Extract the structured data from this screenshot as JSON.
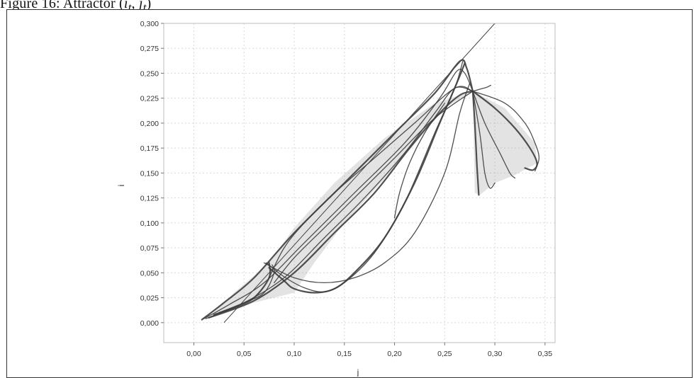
{
  "figure": {
    "caption_prefix": "Figure 16: Attractor (",
    "caption_i": "i",
    "caption_sub1": "t",
    "caption_sep": ", ",
    "caption_j": "j",
    "caption_sub2": "t",
    "caption_suffix": ")"
  },
  "chart_data": {
    "type": "scatter",
    "title": "",
    "xlabel": "j",
    "ylabel": "i",
    "xlim": [
      -0.03,
      0.36
    ],
    "ylim": [
      -0.02,
      0.3
    ],
    "x_ticks": [
      "0,00",
      "0,05",
      "0,10",
      "0,15",
      "0,20",
      "0,25",
      "0,30",
      "0,35"
    ],
    "x_tick_values": [
      0.0,
      0.05,
      0.1,
      0.15,
      0.2,
      0.25,
      0.3,
      0.35
    ],
    "y_ticks": [
      "0,000",
      "0,025",
      "0,050",
      "0,075",
      "0,100",
      "0,125",
      "0,150",
      "0,175",
      "0,200",
      "0,225",
      "0,250",
      "0,275",
      "0,300"
    ],
    "y_tick_values": [
      0.0,
      0.025,
      0.05,
      0.075,
      0.1,
      0.125,
      0.15,
      0.175,
      0.2,
      0.225,
      0.25,
      0.275,
      0.3
    ],
    "grid": true,
    "reference_line": {
      "name": "",
      "points": [
        [
          0.03,
          0.0
        ],
        [
          0.3,
          0.3
        ]
      ]
    },
    "attractor_curves": [
      [
        [
          0.008,
          0.003
        ],
        [
          0.03,
          0.02
        ],
        [
          0.06,
          0.045
        ],
        [
          0.1,
          0.09
        ],
        [
          0.15,
          0.14
        ],
        [
          0.2,
          0.19
        ],
        [
          0.24,
          0.23
        ],
        [
          0.265,
          0.262
        ],
        [
          0.272,
          0.255
        ],
        [
          0.278,
          0.232
        ]
      ],
      [
        [
          0.01,
          0.004
        ],
        [
          0.035,
          0.018
        ],
        [
          0.07,
          0.04
        ],
        [
          0.11,
          0.08
        ],
        [
          0.16,
          0.13
        ],
        [
          0.21,
          0.18
        ],
        [
          0.245,
          0.225
        ],
        [
          0.262,
          0.252
        ],
        [
          0.27,
          0.25
        ],
        [
          0.278,
          0.232
        ]
      ],
      [
        [
          0.012,
          0.004
        ],
        [
          0.05,
          0.02
        ],
        [
          0.09,
          0.045
        ],
        [
          0.13,
          0.085
        ],
        [
          0.17,
          0.125
        ],
        [
          0.21,
          0.17
        ],
        [
          0.24,
          0.21
        ],
        [
          0.26,
          0.235
        ],
        [
          0.278,
          0.232
        ]
      ],
      [
        [
          0.015,
          0.005
        ],
        [
          0.06,
          0.022
        ],
        [
          0.1,
          0.05
        ],
        [
          0.14,
          0.09
        ],
        [
          0.18,
          0.13
        ],
        [
          0.215,
          0.175
        ],
        [
          0.245,
          0.21
        ],
        [
          0.265,
          0.228
        ],
        [
          0.278,
          0.232
        ]
      ],
      [
        [
          0.075,
          0.045
        ],
        [
          0.09,
          0.075
        ],
        [
          0.11,
          0.1
        ],
        [
          0.14,
          0.13
        ],
        [
          0.18,
          0.165
        ],
        [
          0.22,
          0.2
        ],
        [
          0.26,
          0.235
        ],
        [
          0.278,
          0.232
        ]
      ],
      [
        [
          0.08,
          0.04
        ],
        [
          0.1,
          0.065
        ],
        [
          0.13,
          0.095
        ],
        [
          0.16,
          0.125
        ],
        [
          0.2,
          0.165
        ],
        [
          0.24,
          0.205
        ],
        [
          0.278,
          0.232
        ]
      ],
      [
        [
          0.075,
          0.055
        ],
        [
          0.09,
          0.042
        ],
        [
          0.1,
          0.034
        ],
        [
          0.12,
          0.03
        ],
        [
          0.14,
          0.034
        ],
        [
          0.16,
          0.05
        ],
        [
          0.19,
          0.085
        ],
        [
          0.22,
          0.14
        ],
        [
          0.245,
          0.2
        ],
        [
          0.262,
          0.24
        ],
        [
          0.27,
          0.26
        ]
      ],
      [
        [
          0.072,
          0.06
        ],
        [
          0.09,
          0.046
        ],
        [
          0.11,
          0.035
        ],
        [
          0.13,
          0.031
        ],
        [
          0.15,
          0.04
        ],
        [
          0.18,
          0.07
        ],
        [
          0.21,
          0.12
        ],
        [
          0.24,
          0.19
        ],
        [
          0.26,
          0.235
        ],
        [
          0.268,
          0.262
        ]
      ],
      [
        [
          0.07,
          0.06
        ],
        [
          0.1,
          0.045
        ],
        [
          0.13,
          0.04
        ],
        [
          0.16,
          0.045
        ],
        [
          0.19,
          0.06
        ],
        [
          0.22,
          0.09
        ],
        [
          0.25,
          0.15
        ],
        [
          0.265,
          0.21
        ],
        [
          0.275,
          0.24
        ]
      ],
      [
        [
          0.02,
          0.008
        ],
        [
          0.04,
          0.015
        ],
        [
          0.06,
          0.025
        ],
        [
          0.075,
          0.045
        ],
        [
          0.075,
          0.06
        ]
      ],
      [
        [
          0.025,
          0.01
        ],
        [
          0.05,
          0.02
        ],
        [
          0.07,
          0.03
        ],
        [
          0.08,
          0.05
        ],
        [
          0.078,
          0.058
        ]
      ],
      [
        [
          0.2,
          0.105
        ],
        [
          0.205,
          0.13
        ],
        [
          0.215,
          0.16
        ],
        [
          0.23,
          0.19
        ],
        [
          0.25,
          0.22
        ]
      ],
      [
        [
          0.278,
          0.232
        ],
        [
          0.28,
          0.2
        ],
        [
          0.282,
          0.16
        ],
        [
          0.284,
          0.128
        ]
      ],
      [
        [
          0.278,
          0.232
        ],
        [
          0.285,
          0.19
        ],
        [
          0.29,
          0.15
        ],
        [
          0.295,
          0.135
        ],
        [
          0.3,
          0.14
        ]
      ],
      [
        [
          0.278,
          0.232
        ],
        [
          0.29,
          0.2
        ],
        [
          0.305,
          0.17
        ],
        [
          0.315,
          0.15
        ],
        [
          0.32,
          0.145
        ]
      ],
      [
        [
          0.278,
          0.232
        ],
        [
          0.3,
          0.215
        ],
        [
          0.32,
          0.195
        ],
        [
          0.335,
          0.175
        ],
        [
          0.342,
          0.16
        ],
        [
          0.338,
          0.153
        ],
        [
          0.33,
          0.155
        ]
      ],
      [
        [
          0.278,
          0.232
        ],
        [
          0.31,
          0.22
        ],
        [
          0.33,
          0.2
        ],
        [
          0.34,
          0.18
        ],
        [
          0.344,
          0.165
        ],
        [
          0.34,
          0.152
        ]
      ],
      [
        [
          0.278,
          0.232
        ],
        [
          0.285,
          0.234
        ],
        [
          0.292,
          0.236
        ],
        [
          0.296,
          0.238
        ]
      ]
    ],
    "filled_regions": [
      [
        [
          0.015,
          0.005
        ],
        [
          0.06,
          0.02
        ],
        [
          0.1,
          0.03
        ],
        [
          0.12,
          0.06
        ],
        [
          0.15,
          0.1
        ],
        [
          0.2,
          0.155
        ],
        [
          0.25,
          0.215
        ],
        [
          0.278,
          0.232
        ],
        [
          0.24,
          0.22
        ],
        [
          0.19,
          0.185
        ],
        [
          0.14,
          0.14
        ],
        [
          0.1,
          0.095
        ],
        [
          0.075,
          0.06
        ],
        [
          0.04,
          0.03
        ]
      ],
      [
        [
          0.278,
          0.232
        ],
        [
          0.28,
          0.13
        ],
        [
          0.285,
          0.128
        ],
        [
          0.3,
          0.14
        ],
        [
          0.32,
          0.148
        ],
        [
          0.342,
          0.16
        ],
        [
          0.34,
          0.18
        ],
        [
          0.31,
          0.215
        ]
      ]
    ]
  }
}
